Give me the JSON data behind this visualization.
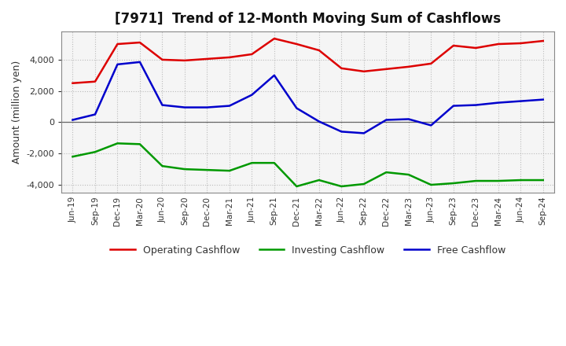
{
  "title": "[7971]  Trend of 12-Month Moving Sum of Cashflows",
  "ylabel": "Amount (million yen)",
  "ylim": [
    -4500,
    5800
  ],
  "yticks": [
    -4000,
    -2000,
    0,
    2000,
    4000
  ],
  "background_color": "#ffffff",
  "plot_bg_color": "#f5f5f5",
  "grid_color": "#bbbbbb",
  "x_labels": [
    "Jun-19",
    "Sep-19",
    "Dec-19",
    "Mar-20",
    "Jun-20",
    "Sep-20",
    "Dec-20",
    "Mar-21",
    "Jun-21",
    "Sep-21",
    "Dec-21",
    "Mar-22",
    "Jun-22",
    "Sep-22",
    "Dec-22",
    "Mar-23",
    "Jun-23",
    "Sep-23",
    "Dec-23",
    "Mar-24",
    "Jun-24",
    "Sep-24"
  ],
  "operating": [
    2500,
    2600,
    5000,
    5100,
    4000,
    3950,
    4050,
    4150,
    4350,
    5350,
    5000,
    4600,
    3450,
    3250,
    3400,
    3550,
    3750,
    4900,
    4750,
    5000,
    5050,
    5200
  ],
  "investing": [
    -2200,
    -1900,
    -1350,
    -1400,
    -2800,
    -3000,
    -3050,
    -3100,
    -2600,
    -2600,
    -4100,
    -3700,
    -4100,
    -3950,
    -3200,
    -3350,
    -4000,
    -3900,
    -3750,
    -3750,
    -3700,
    -3700
  ],
  "free": [
    150,
    500,
    3700,
    3850,
    1100,
    950,
    950,
    1050,
    1750,
    3000,
    900,
    50,
    -600,
    -700,
    150,
    200,
    -200,
    1050,
    1100,
    1250,
    1350,
    1450
  ],
  "op_color": "#dd0000",
  "inv_color": "#009900",
  "free_color": "#0000cc",
  "line_width": 1.8
}
